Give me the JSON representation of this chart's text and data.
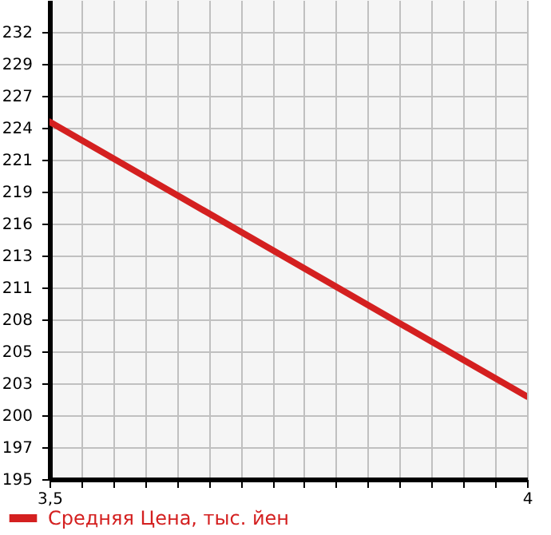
{
  "chart_data": {
    "type": "line",
    "x": [
      3.5,
      4
    ],
    "series": [
      {
        "name": "Средняя Цена, тыс. йен",
        "color": "#d42020",
        "values": [
          224.4,
          201.6
        ]
      }
    ],
    "xlim": [
      3.5,
      4
    ],
    "xticks": [
      {
        "value": 3.5,
        "label": "3,5"
      },
      {
        "value": 3.5333,
        "label": null
      },
      {
        "value": 3.5667,
        "label": null
      },
      {
        "value": 3.6,
        "label": null
      },
      {
        "value": 3.6333,
        "label": null
      },
      {
        "value": 3.6667,
        "label": null
      },
      {
        "value": 3.7,
        "label": null
      },
      {
        "value": 3.7333,
        "label": null
      },
      {
        "value": 3.7667,
        "label": null
      },
      {
        "value": 3.8,
        "label": null
      },
      {
        "value": 3.8333,
        "label": null
      },
      {
        "value": 3.8667,
        "label": null
      },
      {
        "value": 3.9,
        "label": null
      },
      {
        "value": 3.9333,
        "label": null
      },
      {
        "value": 3.9667,
        "label": null
      },
      {
        "value": 4,
        "label": "4"
      }
    ],
    "ylim": [
      194.75,
      234.5
    ],
    "yticks": [
      {
        "value": 194.75,
        "label": "195"
      },
      {
        "value": 197.4,
        "label": "197"
      },
      {
        "value": 200.05,
        "label": "200"
      },
      {
        "value": 202.7,
        "label": "203"
      },
      {
        "value": 205.35,
        "label": "205"
      },
      {
        "value": 208,
        "label": "208"
      },
      {
        "value": 210.65,
        "label": "211"
      },
      {
        "value": 213.3,
        "label": "213"
      },
      {
        "value": 215.95,
        "label": "216"
      },
      {
        "value": 218.6,
        "label": "219"
      },
      {
        "value": 221.25,
        "label": "221"
      },
      {
        "value": 223.9,
        "label": "224"
      },
      {
        "value": 226.55,
        "label": "227"
      },
      {
        "value": 229.2,
        "label": "229"
      },
      {
        "value": 231.85,
        "label": "232"
      }
    ],
    "grid": true,
    "legend": "bottom left",
    "line_style": "solid"
  }
}
